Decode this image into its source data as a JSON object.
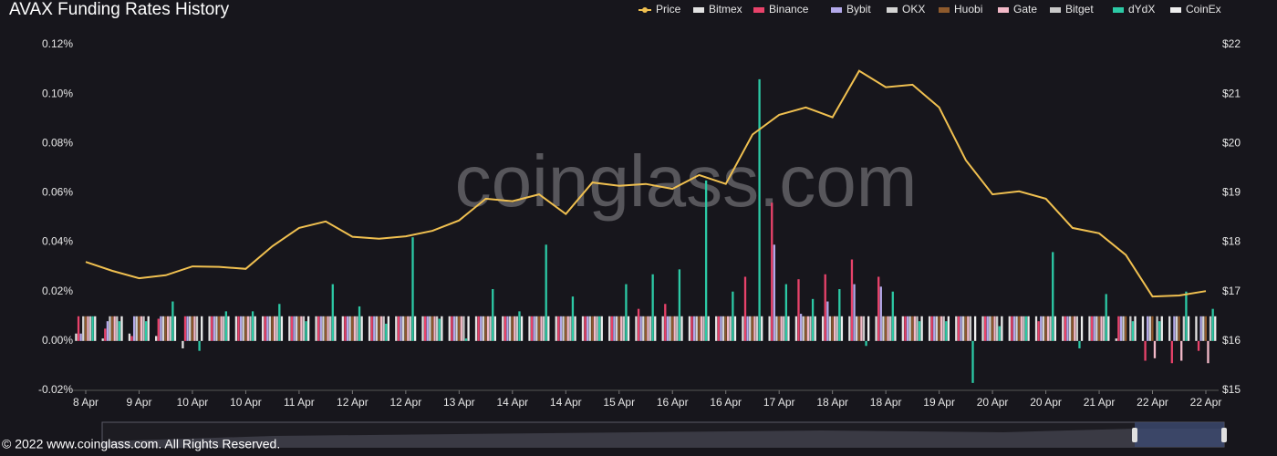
{
  "chart_data": {
    "type": "bar",
    "title": "AVAX Funding Rates History",
    "watermark": "coinglass.com",
    "footer": "© 2022 www.coinglass.com. All Rights Reserved.",
    "categories": [
      "8 Apr",
      null,
      "9 Apr",
      null,
      "10 Apr",
      null,
      "10 Apr",
      null,
      "11 Apr",
      null,
      "12 Apr",
      null,
      "12 Apr",
      null,
      "13 Apr",
      null,
      "14 Apr",
      null,
      "14 Apr",
      null,
      "15 Apr",
      null,
      "16 Apr",
      null,
      "16 Apr",
      null,
      "17 Apr",
      null,
      "18 Apr",
      null,
      "18 Apr",
      null,
      "19 Apr",
      null,
      "20 Apr",
      null,
      "20 Apr",
      null,
      "21 Apr",
      null,
      "22 Apr",
      null,
      "22 Apr"
    ],
    "ylim": [
      -0.02,
      0.12
    ],
    "yticks": [
      {
        "value": -0.02,
        "label": "-0.02%"
      },
      {
        "value": 0,
        "label": "0.00%"
      },
      {
        "value": 0.02,
        "label": "0.02%"
      },
      {
        "value": 0.04,
        "label": "0.04%"
      },
      {
        "value": 0.06,
        "label": "0.06%"
      },
      {
        "value": 0.08,
        "label": "0.08%"
      },
      {
        "value": 0.1,
        "label": "0.10%"
      },
      {
        "value": 0.12,
        "label": "0.12%"
      }
    ],
    "y2lim": [
      15,
      22
    ],
    "y2ticks": [
      {
        "value": 15,
        "label": "$15"
      },
      {
        "value": 16,
        "label": "$16"
      },
      {
        "value": 17,
        "label": "$17"
      },
      {
        "value": 18,
        "label": "$18"
      },
      {
        "value": 19,
        "label": "$19"
      },
      {
        "value": 20,
        "label": "$20"
      },
      {
        "value": 21,
        "label": "$21"
      },
      {
        "value": 22,
        "label": "$22"
      }
    ],
    "series": [
      {
        "name": "Price",
        "type": "line",
        "axis": "y2",
        "color": "#f0c050",
        "values": [
          17.6,
          17.42,
          17.27,
          17.33,
          17.51,
          17.5,
          17.46,
          17.92,
          18.29,
          18.42,
          18.11,
          18.07,
          18.12,
          18.23,
          18.44,
          18.88,
          18.83,
          18.97,
          18.57,
          19.21,
          19.14,
          19.18,
          19.08,
          19.36,
          19.18,
          20.18,
          20.58,
          20.73,
          20.53,
          21.47,
          21.14,
          21.19,
          20.73,
          19.66,
          18.97,
          19.03,
          18.88,
          18.29,
          18.18,
          17.74,
          16.9,
          16.92,
          17.01
        ]
      },
      {
        "name": "Bitmex",
        "color": "#e2e2e2",
        "values": [
          0.003,
          0.001,
          0.003,
          0.002,
          -0.003,
          0.01,
          0.01,
          0.01,
          0.01,
          0.01,
          0.01,
          0.01,
          0.01,
          0.01,
          0.01,
          0.01,
          0.01,
          0.01,
          0.01,
          0.01,
          0.01,
          0.01,
          0.01,
          0.01,
          0.01,
          0.01,
          0.01,
          0.01,
          0.01,
          0.01,
          0.01,
          0.01,
          0.01,
          0.01,
          0.01,
          0.01,
          0.01,
          0.01,
          0.01,
          0.001,
          0.01,
          0.01,
          0.01
        ]
      },
      {
        "name": "Binance",
        "color": "#e8426a",
        "values": [
          0.01,
          0.005,
          0.002,
          0.009,
          0.01,
          0.01,
          0.01,
          0.01,
          0.01,
          0.01,
          0.01,
          0.01,
          0.01,
          0.01,
          0.01,
          0.01,
          0.01,
          0.01,
          0.01,
          0.01,
          0.01,
          0.013,
          0.015,
          0.01,
          0.01,
          0.026,
          0.056,
          0.025,
          0.027,
          0.033,
          0.026,
          0.01,
          0.01,
          0.01,
          0.01,
          0.01,
          0.008,
          0.01,
          0.01,
          0.01,
          -0.008,
          -0.009,
          -0.004
        ]
      },
      {
        "name": "Bybit",
        "color": "#b3a9ea",
        "values": [
          0.003,
          0.008,
          0.01,
          0.01,
          0.01,
          0.01,
          0.01,
          0.01,
          0.01,
          0.01,
          0.01,
          0.01,
          0.01,
          0.01,
          0.01,
          0.01,
          0.01,
          0.01,
          0.01,
          0.01,
          0.01,
          0.01,
          0.01,
          0.01,
          0.01,
          0.01,
          0.039,
          0.011,
          0.016,
          0.023,
          0.022,
          0.01,
          0.01,
          0.01,
          0.01,
          0.01,
          0.01,
          0.01,
          0.01,
          0.01,
          0.01,
          0.01,
          0.01
        ]
      },
      {
        "name": "OKX",
        "color": "#d4d4d4",
        "values": [
          0.01,
          0.01,
          0.01,
          0.01,
          0.01,
          0.01,
          0.01,
          0.01,
          0.01,
          0.01,
          0.01,
          0.01,
          0.01,
          0.01,
          0.01,
          0.01,
          0.01,
          0.01,
          0.01,
          0.01,
          0.01,
          0.01,
          0.01,
          0.01,
          0.01,
          0.01,
          0.01,
          0.01,
          0.01,
          0.01,
          0.01,
          0.01,
          0.01,
          0.01,
          0.01,
          0.01,
          0.01,
          0.01,
          0.01,
          0.01,
          0.01,
          0.01,
          0.01
        ]
      },
      {
        "name": "Huobi",
        "color": "#8e5a2c",
        "values": [
          0.01,
          0.01,
          0.01,
          0.01,
          0.01,
          0.01,
          0.01,
          0.01,
          0.01,
          0.01,
          0.01,
          0.01,
          0.01,
          0.01,
          0.01,
          0.01,
          0.01,
          0.01,
          0.01,
          0.01,
          0.01,
          0.01,
          0.01,
          0.01,
          0.01,
          0.01,
          0.01,
          0.01,
          0.01,
          0.01,
          0.01,
          0.01,
          0.01,
          0.01,
          0.01,
          0.01,
          0.01,
          0.01,
          0.01,
          0.01,
          0.01,
          0.01,
          0.01
        ]
      },
      {
        "name": "Gate",
        "color": "#f3b9c8",
        "values": [
          0.01,
          0.01,
          0.01,
          0.01,
          0.01,
          0.01,
          0.01,
          0.01,
          0.01,
          0.01,
          0.01,
          0.01,
          0.01,
          0.01,
          0.01,
          0.01,
          0.01,
          0.01,
          0.01,
          0.01,
          0.01,
          0.01,
          0.01,
          0.01,
          0.01,
          0.01,
          0.01,
          0.01,
          0.01,
          0.01,
          0.01,
          0.01,
          0.01,
          0.01,
          0.01,
          0.01,
          0.01,
          0.01,
          0.01,
          0.0,
          -0.007,
          -0.008,
          -0.009
        ]
      },
      {
        "name": "Bitget",
        "color": "#c9c9c9",
        "values": [
          0.01,
          0.01,
          0.01,
          0.01,
          0.01,
          0.01,
          0.01,
          0.01,
          0.01,
          0.01,
          0.01,
          0.01,
          0.01,
          0.01,
          0.01,
          0.01,
          0.01,
          0.01,
          0.01,
          0.01,
          0.01,
          0.01,
          0.01,
          0.01,
          0.01,
          0.01,
          0.01,
          0.01,
          0.01,
          0.01,
          0.01,
          0.01,
          0.01,
          0.01,
          0.01,
          0.01,
          0.01,
          0.01,
          0.01,
          0.01,
          0.01,
          0.01,
          0.01
        ]
      },
      {
        "name": "dYdX",
        "color": "#2cc9a5",
        "values": [
          0.01,
          0.008,
          0.008,
          0.016,
          -0.004,
          0.012,
          0.012,
          0.015,
          0.008,
          0.023,
          0.014,
          0.007,
          0.042,
          0.009,
          0.001,
          0.021,
          0.012,
          0.039,
          0.018,
          0.01,
          0.023,
          0.027,
          0.029,
          0.065,
          0.02,
          0.106,
          0.023,
          0.017,
          0.021,
          -0.002,
          0.02,
          0.008,
          0.008,
          -0.017,
          0.006,
          0.01,
          0.036,
          -0.003,
          0.019,
          0.008,
          0.008,
          0.02,
          0.013
        ]
      },
      {
        "name": "CoinEx",
        "color": "#eeeeee",
        "values": [
          0.01,
          0.01,
          0.01,
          0.01,
          0.01,
          0.01,
          0.01,
          0.01,
          0.01,
          0.01,
          0.01,
          0.01,
          0.01,
          0.01,
          0.01,
          0.01,
          0.01,
          0.01,
          0.01,
          0.01,
          0.01,
          0.01,
          0.01,
          0.01,
          0.01,
          0.01,
          0.01,
          0.01,
          0.01,
          0.01,
          0.01,
          0.01,
          0.01,
          0.01,
          0.01,
          0.01,
          0.01,
          0.01,
          0.01,
          0.01,
          0.01,
          0.01,
          0.01
        ]
      }
    ]
  }
}
